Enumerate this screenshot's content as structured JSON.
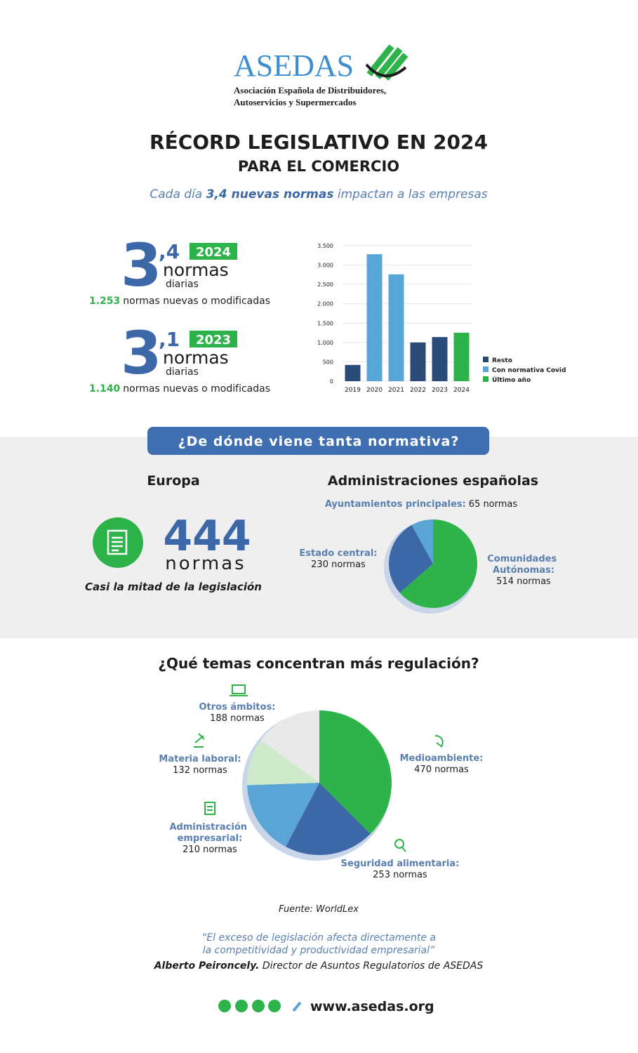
{
  "header": {
    "logo": "ASEDAS",
    "org_lines": [
      "Asociación Española de Distribuidores,",
      "Autoservicios y Supermercados"
    ],
    "title": "RÉCORD LEGISLATIVO EN 2024",
    "subtitle": "PARA EL COMERCIO",
    "tagline": [
      "Cada día",
      "3,4 nuevas normas",
      "impactan a las empresas"
    ]
  },
  "stats": [
    {
      "integer": "3",
      "decimal": ",4",
      "year": "2024",
      "unit": "normas",
      "period": "diarias",
      "count": "1.253",
      "count_text": "normas nuevas o modificadas"
    },
    {
      "integer": "3",
      "decimal": ",1",
      "year": "2023",
      "unit": "normas",
      "period": "diarias",
      "count": "1.140",
      "count_text": "normas nuevas o modificadas"
    }
  ],
  "sources_section": {
    "button": "¿De dónde viene tanta normativa?",
    "europa": {
      "heading": "Europa",
      "number": "444",
      "unit": "normas",
      "note": "Casi la mitad de la legislación"
    },
    "spain_heading": "Administraciones españolas"
  },
  "topics_heading": "¿Qué temas concentran más regulación?",
  "source": "Fuente: WorldLex",
  "quote": {
    "lines": [
      "“El exceso de legislación afecta directamente a",
      "la competitividad y productividad empresarial”"
    ],
    "author": "Alberto Peironcely.",
    "role": "Director de Asuntos Regulatorios de ASEDAS"
  },
  "footer": {
    "website": "www.asedas.org"
  },
  "chart_data": [
    {
      "type": "bar",
      "categories": [
        "2019",
        "2020",
        "2021",
        "2022",
        "2023",
        "2024"
      ],
      "series": [
        {
          "name": "Resto",
          "color": "#2a4a78",
          "values": [
            420,
            null,
            null,
            1000,
            1140,
            null
          ]
        },
        {
          "name": "Con normativa Covid",
          "color": "#58a6d8",
          "values": [
            null,
            3280,
            2760,
            null,
            null,
            null
          ]
        },
        {
          "name": "Último año",
          "color": "#2db34a",
          "values": [
            null,
            null,
            null,
            null,
            null,
            1253
          ]
        }
      ],
      "ylim": [
        0,
        3500
      ],
      "yticks": [
        0,
        500,
        {
          "value": 1000,
          "label": "1.000"
        },
        {
          "value": 1500,
          "label": "1.500"
        },
        {
          "value": 2000,
          "label": "2.000"
        },
        {
          "value": 2500,
          "label": "2.500"
        },
        {
          "value": 3000,
          "label": "3.000"
        },
        {
          "value": 3500,
          "label": "3.500"
        }
      ],
      "grid": true
    },
    {
      "type": "pie",
      "categories": [
        "Comunidades Autónomas:",
        "Estado central:",
        "Ayuntamientos principales:"
      ],
      "values": [
        514,
        230,
        65
      ],
      "value_labels": [
        "514 normas",
        "230 normas",
        "65 normas"
      ],
      "colors": [
        "#2db34a",
        "#3d68a8",
        "#5aa5d6"
      ]
    },
    {
      "type": "pie",
      "categories": [
        "Medioambiente:",
        "Seguridad alimentaria:",
        "Administración empresarial:",
        "Materia laboral:",
        "Otros ámbitos:"
      ],
      "values": [
        470,
        253,
        210,
        132,
        188
      ],
      "value_labels": [
        "470 normas",
        "253 normas",
        "210 normas",
        "132 normas",
        "188 normas"
      ],
      "colors": [
        "#2db34a",
        "#3d68a8",
        "#5aa5d6",
        "#cfeacb",
        "#e9e9e9"
      ]
    }
  ]
}
